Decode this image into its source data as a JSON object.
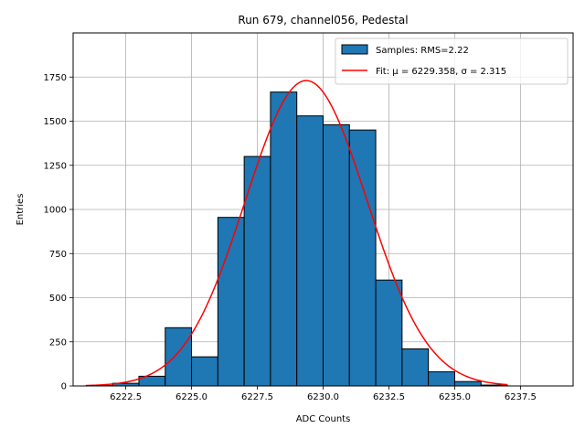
{
  "chart_data": {
    "type": "bar",
    "title": "Run 679, channel056, Pedestal",
    "xlabel": "ADC Counts",
    "ylabel": "Entries",
    "xlim": [
      6220.5,
      6239.5
    ],
    "ylim": [
      0,
      2000
    ],
    "xticks": [
      6222.5,
      6225.0,
      6227.5,
      6230.0,
      6232.5,
      6235.0,
      6237.5
    ],
    "xtick_labels": [
      "6222.5",
      "6225.0",
      "6227.5",
      "6230.0",
      "6232.5",
      "6235.0",
      "6237.5"
    ],
    "yticks": [
      0,
      250,
      500,
      750,
      1000,
      1250,
      1500,
      1750
    ],
    "ytick_labels": [
      "0",
      "250",
      "500",
      "750",
      "1000",
      "1250",
      "1500",
      "1750"
    ],
    "grid": true,
    "legend_position": "top-right",
    "series": [
      {
        "name": "Samples: RMS=2.22",
        "type": "histogram",
        "color": "#1f77b4",
        "edgecolor": "#000000",
        "bin_edges": [
          6221,
          6222,
          6223,
          6224,
          6225,
          6226,
          6227,
          6228,
          6229,
          6230,
          6231,
          6232,
          6233,
          6234,
          6235,
          6236,
          6237
        ],
        "values": [
          3,
          15,
          55,
          330,
          165,
          955,
          1300,
          1665,
          1530,
          1480,
          1450,
          600,
          210,
          80,
          25,
          5
        ]
      },
      {
        "name": "Fit: μ = 6229.358, σ = 2.315",
        "type": "gaussian",
        "color": "#ff0000",
        "mu": 6229.358,
        "sigma": 2.315,
        "amplitude": 1730,
        "x_range": [
          6221,
          6237
        ]
      }
    ]
  }
}
